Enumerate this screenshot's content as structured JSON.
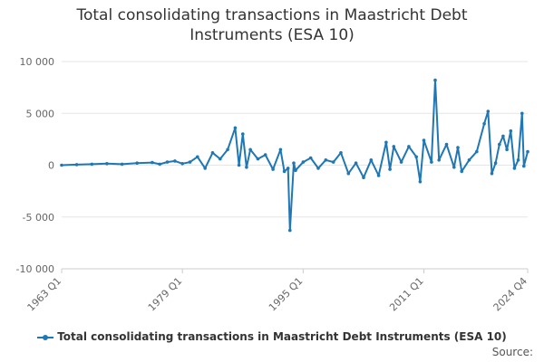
{
  "chart_data": {
    "type": "line",
    "title": "Total consolidating transactions in Maastricht Debt Instruments (ESA 10)",
    "xlabel": "",
    "ylabel": "",
    "x_tick_labels": [
      "1963 Q1",
      "1979 Q1",
      "1995 Q1",
      "2011 Q1",
      "2024 Q4"
    ],
    "y_tick_labels": [
      "10 000",
      "5 000",
      "0",
      "-5 000",
      "-10 000"
    ],
    "y_ticks": [
      10000,
      5000,
      0,
      -5000,
      -10000
    ],
    "ylim": [
      -10000,
      10000
    ],
    "grid": true,
    "legend_position": "bottom",
    "series": [
      {
        "name": "Total consolidating transactions in Maastricht Debt Instruments (ESA 10)",
        "color": "#1f77b4",
        "points": [
          [
            "1963 Q1",
            0
          ],
          [
            "1965 Q1",
            50
          ],
          [
            "1967 Q1",
            100
          ],
          [
            "1969 Q1",
            150
          ],
          [
            "1971 Q1",
            100
          ],
          [
            "1973 Q1",
            200
          ],
          [
            "1975 Q1",
            250
          ],
          [
            "1976 Q1",
            100
          ],
          [
            "1977 Q1",
            300
          ],
          [
            "1978 Q1",
            400
          ],
          [
            "1979 Q1",
            150
          ],
          [
            "1980 Q1",
            300
          ],
          [
            "1981 Q1",
            800
          ],
          [
            "1982 Q1",
            -300
          ],
          [
            "1983 Q1",
            1200
          ],
          [
            "1984 Q1",
            600
          ],
          [
            "1985 Q1",
            1500
          ],
          [
            "1986 Q1",
            3600
          ],
          [
            "1986 Q3",
            0
          ],
          [
            "1987 Q1",
            3000
          ],
          [
            "1987 Q3",
            -200
          ],
          [
            "1988 Q1",
            1500
          ],
          [
            "1989 Q1",
            600
          ],
          [
            "1990 Q1",
            1000
          ],
          [
            "1991 Q1",
            -400
          ],
          [
            "1992 Q1",
            1500
          ],
          [
            "1992 Q3",
            -600
          ],
          [
            "1993 Q1",
            -300
          ],
          [
            "1993 Q2",
            -6300
          ],
          [
            "1993 Q4",
            200
          ],
          [
            "1994 Q1",
            -500
          ],
          [
            "1995 Q1",
            300
          ],
          [
            "1996 Q1",
            700
          ],
          [
            "1997 Q1",
            -300
          ],
          [
            "1998 Q1",
            500
          ],
          [
            "1999 Q1",
            300
          ],
          [
            "2000 Q1",
            1200
          ],
          [
            "2001 Q1",
            -800
          ],
          [
            "2002 Q1",
            200
          ],
          [
            "2003 Q1",
            -1200
          ],
          [
            "2004 Q1",
            500
          ],
          [
            "2005 Q1",
            -1000
          ],
          [
            "2006 Q1",
            2200
          ],
          [
            "2006 Q3",
            -400
          ],
          [
            "2007 Q1",
            1800
          ],
          [
            "2008 Q1",
            300
          ],
          [
            "2009 Q1",
            1800
          ],
          [
            "2010 Q1",
            800
          ],
          [
            "2010 Q3",
            -1600
          ],
          [
            "2011 Q1",
            2400
          ],
          [
            "2012 Q1",
            300
          ],
          [
            "2012 Q3",
            8200
          ],
          [
            "2013 Q1",
            500
          ],
          [
            "2014 Q1",
            2000
          ],
          [
            "2015 Q1",
            -200
          ],
          [
            "2015 Q3",
            1700
          ],
          [
            "2016 Q1",
            -600
          ],
          [
            "2017 Q1",
            500
          ],
          [
            "2018 Q1",
            1300
          ],
          [
            "2019 Q1",
            4000
          ],
          [
            "2019 Q3",
            5200
          ],
          [
            "2020 Q1",
            -800
          ],
          [
            "2020 Q3",
            200
          ],
          [
            "2021 Q1",
            2000
          ],
          [
            "2021 Q3",
            2800
          ],
          [
            "2022 Q1",
            1500
          ],
          [
            "2022 Q3",
            3300
          ],
          [
            "2023 Q1",
            -300
          ],
          [
            "2023 Q3",
            500
          ],
          [
            "2024 Q1",
            5000
          ],
          [
            "2024 Q2",
            -100
          ],
          [
            "2024 Q4",
            1300
          ]
        ]
      }
    ]
  },
  "source_label": "Source:"
}
